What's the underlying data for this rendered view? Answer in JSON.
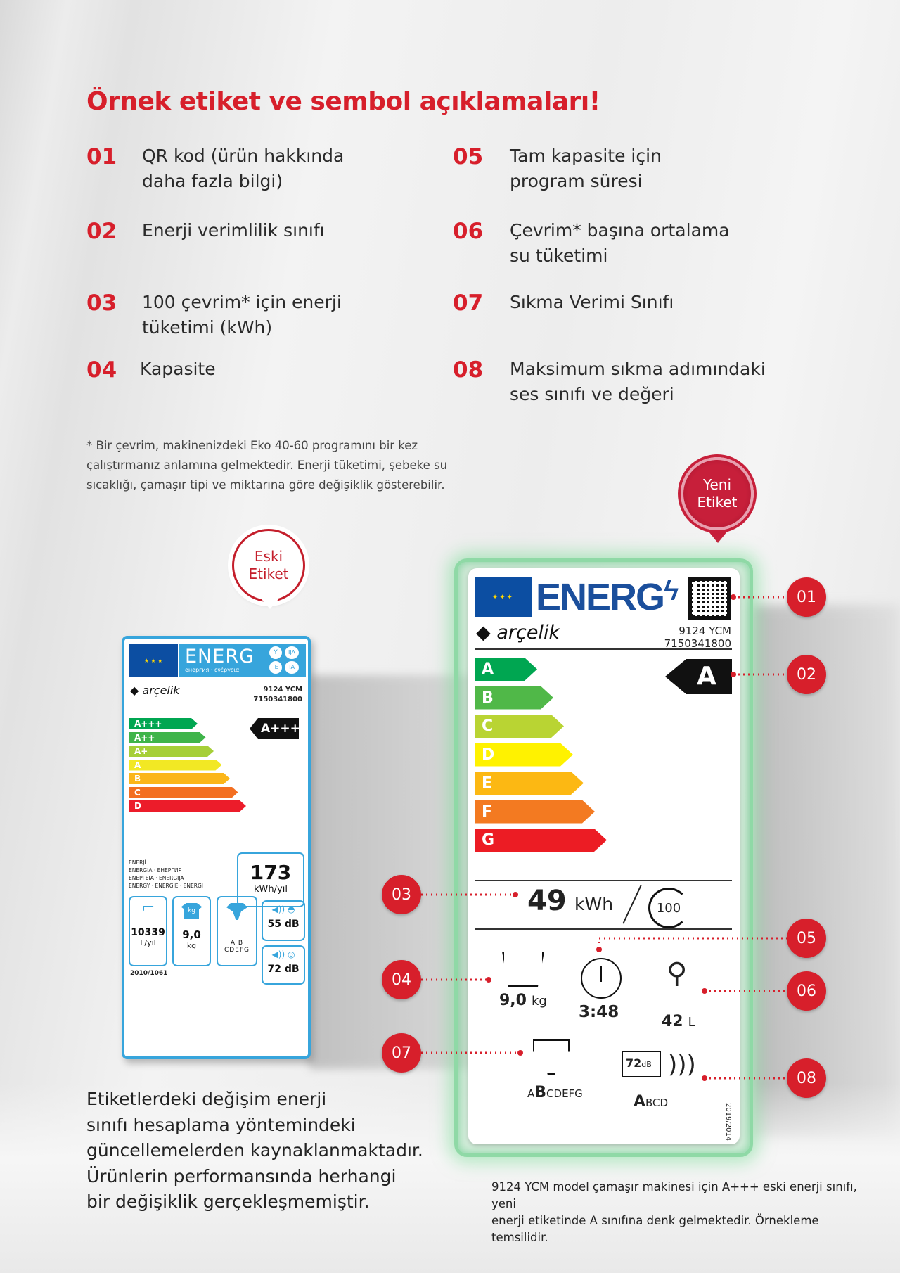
{
  "title": "Örnek etiket ve sembol açıklamaları!",
  "items": [
    {
      "num": "01",
      "text": [
        "QR kod (ürün hakkında",
        "daha fazla bilgi)"
      ]
    },
    {
      "num": "02",
      "text": [
        "Enerji verimlilik sınıfı"
      ]
    },
    {
      "num": "03",
      "text": [
        "100 çevrim* için enerji",
        "tüketimi (kWh)"
      ]
    },
    {
      "num": "04",
      "text": [
        "Kapasite"
      ]
    },
    {
      "num": "05",
      "text": [
        "Tam kapasite için",
        "program süresi"
      ]
    },
    {
      "num": "06",
      "text": [
        "Çevrim* başına ortalama",
        "su tüketimi"
      ]
    },
    {
      "num": "07",
      "text": [
        "Sıkma Verimi Sınıfı"
      ]
    },
    {
      "num": "08",
      "text": [
        "Maksimum sıkma adımındaki",
        "ses sınıfı ve değeri"
      ]
    }
  ],
  "footnote": [
    "* Bir çevrim, makinenizdeki Eko 40-60 programını bir kez",
    "çalıştırmanız anlamına gelmektedir. Enerji tüketimi, şebeke su",
    "sıcaklığı, çamaşır tipi ve miktarına göre değişiklik gösterebilir."
  ],
  "badges": {
    "old": [
      "Eski",
      "Etiket"
    ],
    "new": [
      "Yeni",
      "Etiket"
    ]
  },
  "old_label": {
    "energ": "ENERG",
    "sub": "енергия · ενέργεια",
    "circles": [
      "Y",
      "IJA",
      "IE",
      "IA"
    ],
    "brand": "arçelik",
    "model": "9124 YCM",
    "code": "7150341800",
    "classes": [
      "A+++",
      "A++",
      "A+",
      "A",
      "B",
      "C",
      "D"
    ],
    "class_colors": [
      "#00a651",
      "#3fb44a",
      "#a6cf38",
      "#f2e824",
      "#fbb61a",
      "#f36f21",
      "#ec1c2a"
    ],
    "rating": "A+++",
    "energy_words": [
      "ENERJİ",
      "ENERGIA · ЕНЕРГИЯ",
      "ΕΝΕΡΓΕΙΑ · ENERGIJA",
      "ENERGY · ENERGIE · ENERGI"
    ],
    "kwh": "173",
    "kwh_unit": "kWh/yıl",
    "water": "10339",
    "water_unit": "L/yıl",
    "capacity": "9,0",
    "capacity_unit": "kg",
    "kg_tag": "kg",
    "spin_classes": "A B CDEFG",
    "noise_wash": "55 dB",
    "noise_spin": "72 dB",
    "regulation": "2010/1061"
  },
  "new_label": {
    "energ": "ENERG",
    "brand": "arçelik",
    "model": "9124 YCM",
    "code": "7150341800",
    "classes": [
      "A",
      "B",
      "C",
      "D",
      "E",
      "F",
      "G"
    ],
    "class_colors": [
      "#00a651",
      "#50b848",
      "#b9d433",
      "#fff200",
      "#fcb813",
      "#f37a21",
      "#ec1c24"
    ],
    "rating": "A",
    "kwh": "49",
    "kwh_unit": "kWh",
    "cycles": "100",
    "capacity": "9,0",
    "capacity_unit": "kg",
    "duration": "3:48",
    "water": "42",
    "water_unit": "L",
    "spin": {
      "small": "A",
      "big": "B",
      "rest": "CDEFG"
    },
    "noise": {
      "value": "72",
      "unit": "dB",
      "big": "A",
      "rest": "BCD"
    },
    "regulation": "2019/2014"
  },
  "callouts": [
    "01",
    "02",
    "03",
    "04",
    "05",
    "06",
    "07",
    "08"
  ],
  "bottom_left": [
    "Etiketlerdeki değişim enerji",
    "sınıfı hesaplama yöntemindeki",
    "güncellemelerden kaynaklanmaktadır.",
    "Ürünlerin performansında herhangi",
    "bir değişiklik gerçekleşmemiştir."
  ],
  "bottom_right": [
    "9124 YCM model çamaşır makinesi  için A+++ eski enerji sınıfı, yeni",
    "enerji etiketinde A sınıfına denk gelmektedir. Örnekleme temsilidir."
  ],
  "colors": {
    "accent": "#d71f2b",
    "old_label_border": "#37a5dc",
    "energ_blue": "#1b4f9c",
    "eu_blue": "#0c4ea2",
    "new_frame_glow": "#8fd9a6"
  }
}
